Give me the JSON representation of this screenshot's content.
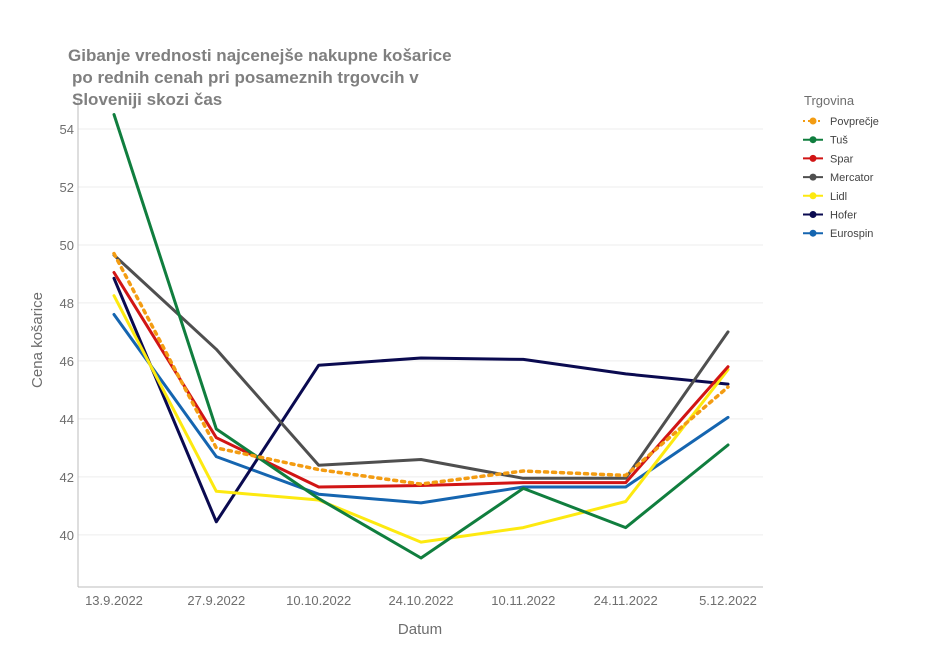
{
  "chart_data": {
    "type": "line",
    "title": [
      "Gibanje vrednosti najcenejše nakupne košarice",
      "po rednih cenah pri posameznih trgovcih v",
      "Sloveniji skozi čas"
    ],
    "xlabel": "Datum",
    "ylabel": "Cena košarice",
    "categories": [
      "13.9.2022",
      "27.9.2022",
      "10.10.2022",
      "24.10.2022",
      "10.11.2022",
      "24.11.2022",
      "5.12.2022"
    ],
    "yticks": [
      40,
      42,
      44,
      46,
      48,
      50,
      52,
      54
    ],
    "ylim": [
      38.2,
      55.0
    ],
    "legend_title": "Trgovina",
    "legend_position": "right",
    "series": [
      {
        "name": "Eurospin",
        "color": "#1565b0",
        "dashed": false,
        "values": [
          47.6,
          42.7,
          41.4,
          41.1,
          41.65,
          41.65,
          44.05
        ]
      },
      {
        "name": "Hofer",
        "color": "#0a0a50",
        "dashed": false,
        "values": [
          48.85,
          40.45,
          45.85,
          46.1,
          46.05,
          45.55,
          45.2
        ]
      },
      {
        "name": "Lidl",
        "color": "#fde910",
        "dashed": false,
        "values": [
          48.25,
          41.5,
          41.2,
          39.75,
          40.25,
          41.15,
          45.7
        ]
      },
      {
        "name": "Mercator",
        "color": "#4f4f4f",
        "dashed": false,
        "values": [
          49.65,
          46.4,
          42.4,
          42.6,
          41.95,
          41.95,
          47.0
        ]
      },
      {
        "name": "Spar",
        "color": "#d11515",
        "dashed": false,
        "values": [
          49.05,
          43.35,
          41.65,
          41.7,
          41.8,
          41.8,
          45.8
        ]
      },
      {
        "name": "Tuš",
        "color": "#107e3e",
        "dashed": false,
        "values": [
          54.5,
          43.65,
          41.25,
          39.2,
          41.6,
          40.25,
          43.1
        ]
      },
      {
        "name": "Povprečje",
        "color": "#f39c12",
        "dashed": true,
        "values": [
          49.7,
          43.0,
          42.25,
          41.75,
          42.2,
          42.05,
          45.1
        ]
      }
    ],
    "legend_order": [
      "Povprečje",
      "Tuš",
      "Spar",
      "Mercator",
      "Lidl",
      "Hofer",
      "Eurospin"
    ],
    "grid": true
  }
}
